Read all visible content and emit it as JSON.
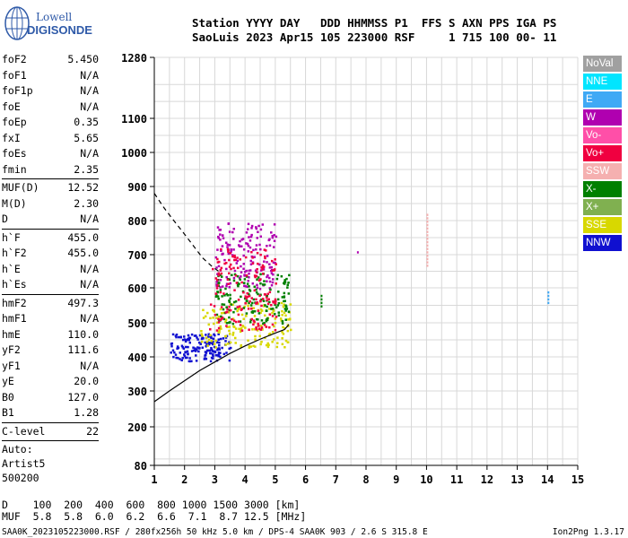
{
  "logo": {
    "line1": "Lowell",
    "line2": "DIGISONDE"
  },
  "header": {
    "line1": "Station YYYY DAY   DDD HHMMSS P1  FFS S AXN PPS IGA PS",
    "line2": "SaoLuis 2023 Apr15 105 223000 RSF     1 715 100 00- 11"
  },
  "params": {
    "group1": [
      {
        "name": "foF2",
        "value": "5.450"
      },
      {
        "name": "foF1",
        "value": "N/A"
      },
      {
        "name": "foF1p",
        "value": "N/A"
      },
      {
        "name": "foE",
        "value": "N/A"
      },
      {
        "name": "foEp",
        "value": "0.35"
      },
      {
        "name": "fxI",
        "value": "5.65"
      },
      {
        "name": "foEs",
        "value": "N/A"
      },
      {
        "name": "fmin",
        "value": "2.35"
      }
    ],
    "group2": [
      {
        "name": "MUF(D)",
        "value": "12.52"
      },
      {
        "name": "M(D)",
        "value": "2.30"
      },
      {
        "name": "D",
        "value": "N/A"
      }
    ],
    "group3": [
      {
        "name": "h`F",
        "value": "455.0"
      },
      {
        "name": "h`F2",
        "value": "455.0"
      },
      {
        "name": "h`E",
        "value": "N/A"
      },
      {
        "name": "h`Es",
        "value": "N/A"
      }
    ],
    "group4": [
      {
        "name": "hmF2",
        "value": "497.3"
      },
      {
        "name": "hmF1",
        "value": "N/A"
      },
      {
        "name": "hmE",
        "value": "110.0"
      },
      {
        "name": "yF2",
        "value": "111.6"
      },
      {
        "name": "yF1",
        "value": "N/A"
      },
      {
        "name": "yE",
        "value": "20.0"
      },
      {
        "name": "B0",
        "value": "127.0"
      },
      {
        "name": "B1",
        "value": "1.28"
      }
    ],
    "group5": [
      {
        "name": "C-level",
        "value": "22"
      }
    ],
    "auto": [
      "Auto:",
      "Artist5",
      "500200"
    ]
  },
  "legend": [
    {
      "label": "NoVal",
      "color": "#a0a0a0"
    },
    {
      "label": "NNE",
      "color": "#00e5ff"
    },
    {
      "label": "E",
      "color": "#3fa9f5"
    },
    {
      "label": "W",
      "color": "#b000b0"
    },
    {
      "label": "Vo-",
      "color": "#ff4fa8"
    },
    {
      "label": "Vo+",
      "color": "#f00040"
    },
    {
      "label": "SSW",
      "color": "#f5b0b0"
    },
    {
      "label": "X-",
      "color": "#008000"
    },
    {
      "label": "X+",
      "color": "#80b050"
    },
    {
      "label": "SSE",
      "color": "#d8d800"
    },
    {
      "label": "NNW",
      "color": "#1010d0"
    }
  ],
  "chart_data": {
    "type": "scatter",
    "title": "",
    "xlabel": "",
    "ylabel": "",
    "xlim": [
      1,
      15
    ],
    "ylim": [
      80,
      1280
    ],
    "x_ticks": [
      "1",
      "2",
      "3",
      "4",
      "5",
      "6",
      "7",
      "8",
      "9",
      "10",
      "11",
      "12",
      "13",
      "14",
      "15"
    ],
    "y_ticks": [
      "80",
      "200",
      "300",
      "400",
      "500",
      "600",
      "700",
      "800",
      "900",
      "1000",
      "1100",
      "1280"
    ],
    "y_scale": "ionogram nonlinear",
    "grid": true,
    "profile_curve": [
      [
        1.0,
        270
      ],
      [
        1.5,
        300
      ],
      [
        2.0,
        330
      ],
      [
        2.5,
        360
      ],
      [
        3.0,
        385
      ],
      [
        3.5,
        410
      ],
      [
        4.0,
        432
      ],
      [
        4.5,
        452
      ],
      [
        5.0,
        470
      ],
      [
        5.3,
        480
      ],
      [
        5.45,
        495
      ]
    ],
    "mufd_curve": [
      [
        1.0,
        880
      ],
      [
        1.3,
        840
      ],
      [
        1.6,
        805
      ],
      [
        2.0,
        760
      ],
      [
        2.3,
        725
      ],
      [
        2.6,
        690
      ],
      [
        2.9,
        665
      ],
      [
        3.2,
        645
      ]
    ],
    "scatter_clusters": [
      {
        "x": [
          1.5,
          3.5
        ],
        "y": [
          390,
          470
        ],
        "color": "#1010d0"
      },
      {
        "x": [
          2.5,
          5.5
        ],
        "y": [
          430,
          560
        ],
        "color": "#d8d800"
      },
      {
        "x": [
          3.0,
          5.0
        ],
        "y": [
          600,
          800
        ],
        "color": "#b000b0"
      },
      {
        "x": [
          3.0,
          5.5
        ],
        "y": [
          500,
          650
        ],
        "color": "#008000"
      },
      {
        "x": [
          2.8,
          5.0
        ],
        "y": [
          480,
          720
        ],
        "color": "#f00040"
      }
    ],
    "outliers": [
      {
        "x": 10.0,
        "y": [
          670,
          820
        ],
        "color": "#f5b0b0"
      },
      {
        "x": 14.0,
        "y": [
          560,
          590
        ],
        "color": "#3fa9f5"
      },
      {
        "x": 7.7,
        "y": [
          710,
          710
        ],
        "color": "#b000b0"
      },
      {
        "x": 6.5,
        "y": [
          550,
          580
        ],
        "color": "#008000"
      }
    ]
  },
  "mufdist": {
    "line1": "D    100  200  400  600  800 1000 1500 3000 [km]",
    "line2": "MUF  5.8  5.8  6.0  6.2  6.6  7.1  8.7 12.5 [MHz]"
  },
  "footer": {
    "left": "SAA0K_2023105223000.RSF / 280fx256h 50 kHz 5.0 km / DPS-4 SAA0K 903 / 2.6 S 315.8 E",
    "right": "Ion2Png 1.3.17"
  }
}
